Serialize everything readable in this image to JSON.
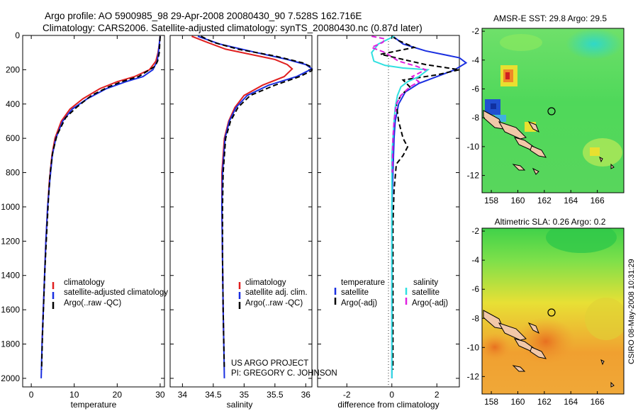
{
  "header": {
    "line1": "Argo profile: AO 5900985_98 29-Apr-2008 20080430_90 7.528S 162.716E",
    "line2": "Climatology: CARS2006. Satellite-adjusted climatology: synTS_20080430.nc (0.87d later)"
  },
  "side_label": "CSIRO 08-May-2008 10:31:29",
  "credit": {
    "line1": "US ARGO PROJECT",
    "line2": "PI: GREGORY C. JOHNSON"
  },
  "colors": {
    "climatology": "#e02020",
    "satellite": "#1a2fe0",
    "argo": "#000000",
    "sat_salinity": "#30e0e0",
    "argo_salinity": "#e020e0"
  },
  "chart_data": [
    {
      "type": "line",
      "xlabel": "temperature",
      "xlim": [
        -2,
        31
      ],
      "ylim": [
        2050,
        0
      ],
      "xticks": [
        0,
        10,
        20,
        30
      ],
      "yticks": [
        0,
        200,
        400,
        600,
        800,
        1000,
        1200,
        1400,
        1600,
        1800,
        2000
      ],
      "legend": [
        "climatology",
        "satellite-adjusted climatology",
        "Argo(..raw -QC)"
      ],
      "series": [
        {
          "name": "climatology",
          "style": "red",
          "points": [
            [
              30,
              5
            ],
            [
              29.8,
              50
            ],
            [
              29.5,
              100
            ],
            [
              29,
              150
            ],
            [
              27.5,
              200
            ],
            [
              24,
              240
            ],
            [
              20,
              270
            ],
            [
              16,
              310
            ],
            [
              12,
              370
            ],
            [
              9,
              430
            ],
            [
              7,
              500
            ],
            [
              5.5,
              600
            ],
            [
              4.8,
              700
            ],
            [
              4.2,
              850
            ],
            [
              3.8,
              1000
            ],
            [
              3.4,
              1200
            ],
            [
              3.1,
              1400
            ],
            [
              2.8,
              1600
            ],
            [
              2.5,
              1800
            ]
          ]
        },
        {
          "name": "satellite-adjusted climatology",
          "style": "blue",
          "points": [
            [
              30,
              5
            ],
            [
              29.8,
              50
            ],
            [
              29.6,
              100
            ],
            [
              29.3,
              150
            ],
            [
              28.3,
              200
            ],
            [
              26,
              240
            ],
            [
              22,
              270
            ],
            [
              17.5,
              310
            ],
            [
              13,
              370
            ],
            [
              9.5,
              430
            ],
            [
              7.3,
              500
            ],
            [
              5.7,
              600
            ],
            [
              4.9,
              700
            ],
            [
              4.3,
              850
            ],
            [
              3.8,
              1000
            ],
            [
              3.4,
              1200
            ],
            [
              3.1,
              1400
            ],
            [
              2.8,
              1600
            ],
            [
              2.5,
              1800
            ],
            [
              2.4,
              1900
            ],
            [
              2.3,
              2000
            ]
          ]
        },
        {
          "name": "Argo(..raw -QC)",
          "style": "blackdash",
          "points": [
            [
              30,
              5
            ],
            [
              29.9,
              50
            ],
            [
              29.8,
              100
            ],
            [
              29.4,
              150
            ],
            [
              28.8,
              180
            ],
            [
              27.5,
              200
            ],
            [
              25,
              240
            ],
            [
              21,
              270
            ],
            [
              18,
              300
            ],
            [
              14,
              350
            ],
            [
              10.5,
              420
            ],
            [
              8,
              480
            ],
            [
              6,
              580
            ],
            [
              5,
              680
            ],
            [
              4.4,
              800
            ],
            [
              4,
              950
            ],
            [
              3.6,
              1150
            ],
            [
              3.2,
              1350
            ],
            [
              2.9,
              1550
            ],
            [
              2.6,
              1750
            ],
            [
              2.4,
              1950
            ]
          ]
        }
      ]
    },
    {
      "type": "line",
      "xlabel": "salinity",
      "xlim": [
        33.8,
        36.1
      ],
      "ylim": [
        2050,
        0
      ],
      "xticks": [
        34,
        34.5,
        35,
        35.5,
        36
      ],
      "legend": [
        "climatology",
        "satellite adj. clim.",
        "Argo(..raw -QC)"
      ],
      "series": [
        {
          "name": "climatology",
          "style": "red",
          "points": [
            [
              34.15,
              5
            ],
            [
              34.4,
              40
            ],
            [
              34.7,
              80
            ],
            [
              35.1,
              110
            ],
            [
              35.5,
              140
            ],
            [
              35.7,
              170
            ],
            [
              35.78,
              195
            ],
            [
              35.65,
              240
            ],
            [
              35.3,
              290
            ],
            [
              35,
              350
            ],
            [
              34.85,
              420
            ],
            [
              34.75,
              500
            ],
            [
              34.68,
              600
            ],
            [
              34.64,
              800
            ],
            [
              34.64,
              1000
            ],
            [
              34.65,
              1300
            ],
            [
              34.66,
              1600
            ],
            [
              34.67,
              1800
            ]
          ]
        },
        {
          "name": "satellite adj. clim.",
          "style": "blue",
          "points": [
            [
              34.25,
              5
            ],
            [
              34.6,
              50
            ],
            [
              35.2,
              100
            ],
            [
              35.7,
              140
            ],
            [
              36,
              170
            ],
            [
              36.1,
              195
            ],
            [
              35.85,
              240
            ],
            [
              35.4,
              290
            ],
            [
              35.05,
              350
            ],
            [
              34.87,
              420
            ],
            [
              34.76,
              500
            ],
            [
              34.69,
              600
            ],
            [
              34.65,
              800
            ],
            [
              34.64,
              1000
            ],
            [
              34.65,
              1300
            ],
            [
              34.66,
              1600
            ],
            [
              34.67,
              1800
            ],
            [
              34.68,
              2000
            ]
          ]
        },
        {
          "name": "Argo(..raw -QC)",
          "style": "blackdash",
          "points": [
            [
              34.3,
              5
            ],
            [
              34.5,
              40
            ],
            [
              34.9,
              80
            ],
            [
              35.5,
              120
            ],
            [
              35.95,
              160
            ],
            [
              36.1,
              185
            ],
            [
              36.1,
              205
            ],
            [
              35.9,
              240
            ],
            [
              35.5,
              290
            ],
            [
              35.1,
              350
            ],
            [
              34.9,
              420
            ],
            [
              34.78,
              500
            ],
            [
              34.7,
              600
            ],
            [
              34.66,
              800
            ],
            [
              34.65,
              1000
            ],
            [
              34.65,
              1300
            ],
            [
              34.66,
              1600
            ],
            [
              34.67,
              1800
            ],
            [
              34.68,
              1950
            ]
          ]
        }
      ]
    },
    {
      "type": "line",
      "xlabel": "difference from climatology",
      "xlim": [
        -3.3,
        3
      ],
      "ylim": [
        2050,
        0
      ],
      "xticks": [
        -2,
        0,
        2
      ],
      "legend_left_title": "temperature",
      "legend_right_title": "salinity",
      "legend": [
        "satellite",
        "Argo(-adj)",
        "satellite",
        "Argo(-adj)"
      ],
      "series": [
        {
          "name": "temperature satellite",
          "style": "blue",
          "points": [
            [
              0.05,
              5
            ],
            [
              0.5,
              50
            ],
            [
              1.5,
              90
            ],
            [
              3,
              130
            ],
            [
              3.3,
              160
            ],
            [
              2.8,
              200
            ],
            [
              2,
              240
            ],
            [
              1.2,
              280
            ],
            [
              0.6,
              330
            ],
            [
              0.3,
              400
            ],
            [
              0.15,
              500
            ],
            [
              0.1,
              600
            ],
            [
              0.05,
              800
            ],
            [
              0,
              1000
            ],
            [
              0,
              1400
            ],
            [
              0,
              2000
            ]
          ]
        },
        {
          "name": "temperature Argo(-adj)",
          "style": "blackdash",
          "points": [
            [
              0,
              5
            ],
            [
              0.3,
              30
            ],
            [
              1,
              70
            ],
            [
              -0.5,
              110
            ],
            [
              0.5,
              140
            ],
            [
              1.5,
              170
            ],
            [
              3,
              200
            ],
            [
              2,
              230
            ],
            [
              0.5,
              260
            ],
            [
              0.8,
              300
            ],
            [
              0.4,
              350
            ],
            [
              0.2,
              400
            ],
            [
              0.3,
              500
            ],
            [
              0.5,
              600
            ],
            [
              0.7,
              650
            ],
            [
              0.5,
              700
            ],
            [
              0.2,
              750
            ],
            [
              0.1,
              900
            ],
            [
              0.05,
              1100
            ],
            [
              0.05,
              1500
            ],
            [
              0.05,
              1950
            ]
          ]
        },
        {
          "name": "salinity satellite",
          "style": "cyan",
          "points": [
            [
              0.1,
              5
            ],
            [
              -0.6,
              50
            ],
            [
              -0.9,
              100
            ],
            [
              -0.8,
              150
            ],
            [
              -0.3,
              175
            ],
            [
              0.5,
              190
            ],
            [
              1.6,
              200
            ],
            [
              1.2,
              240
            ],
            [
              0.7,
              270
            ],
            [
              0.4,
              300
            ],
            [
              0.25,
              350
            ],
            [
              0.15,
              420
            ],
            [
              0.1,
              500
            ],
            [
              0.05,
              600
            ],
            [
              0,
              700
            ],
            [
              0,
              1000
            ],
            [
              0,
              1400
            ],
            [
              0,
              2000
            ]
          ]
        },
        {
          "name": "salinity Argo(-adj)",
          "style": "magentadash",
          "points": [
            [
              -0.9,
              5
            ],
            [
              -0.3,
              20
            ],
            [
              -0.4,
              40
            ],
            [
              -0.9,
              70
            ],
            [
              -0.3,
              100
            ],
            [
              0.3,
              150
            ],
            [
              1.1,
              180
            ],
            [
              1.5,
              200
            ],
            [
              0.9,
              240
            ],
            [
              1.2,
              270
            ],
            [
              0.8,
              300
            ],
            [
              0.4,
              350
            ],
            [
              0.2,
              400
            ],
            [
              0.1,
              500
            ],
            [
              0.05,
              600
            ],
            [
              0.02,
              800
            ]
          ]
        }
      ]
    },
    {
      "type": "heatmap",
      "title": "AMSR-E SST: 29.8 Argo: 29.5",
      "xlim": [
        157.3,
        168
      ],
      "ylim": [
        -13.2,
        -1.8
      ],
      "xticks": [
        158,
        160,
        162,
        164,
        166
      ],
      "yticks": [
        -2,
        -4,
        -6,
        -8,
        -10,
        -12
      ],
      "argo_position": [
        162.716,
        -7.528
      ]
    },
    {
      "type": "heatmap",
      "title": "Altimetric SLA: 0.26 Argo: 0.2",
      "xlim": [
        157.3,
        168
      ],
      "ylim": [
        -13.2,
        -1.8
      ],
      "xticks": [
        158,
        160,
        162,
        164,
        166
      ],
      "yticks": [
        -2,
        -4,
        -6,
        -8,
        -10,
        -12
      ],
      "argo_position": [
        162.716,
        -7.528
      ]
    }
  ]
}
